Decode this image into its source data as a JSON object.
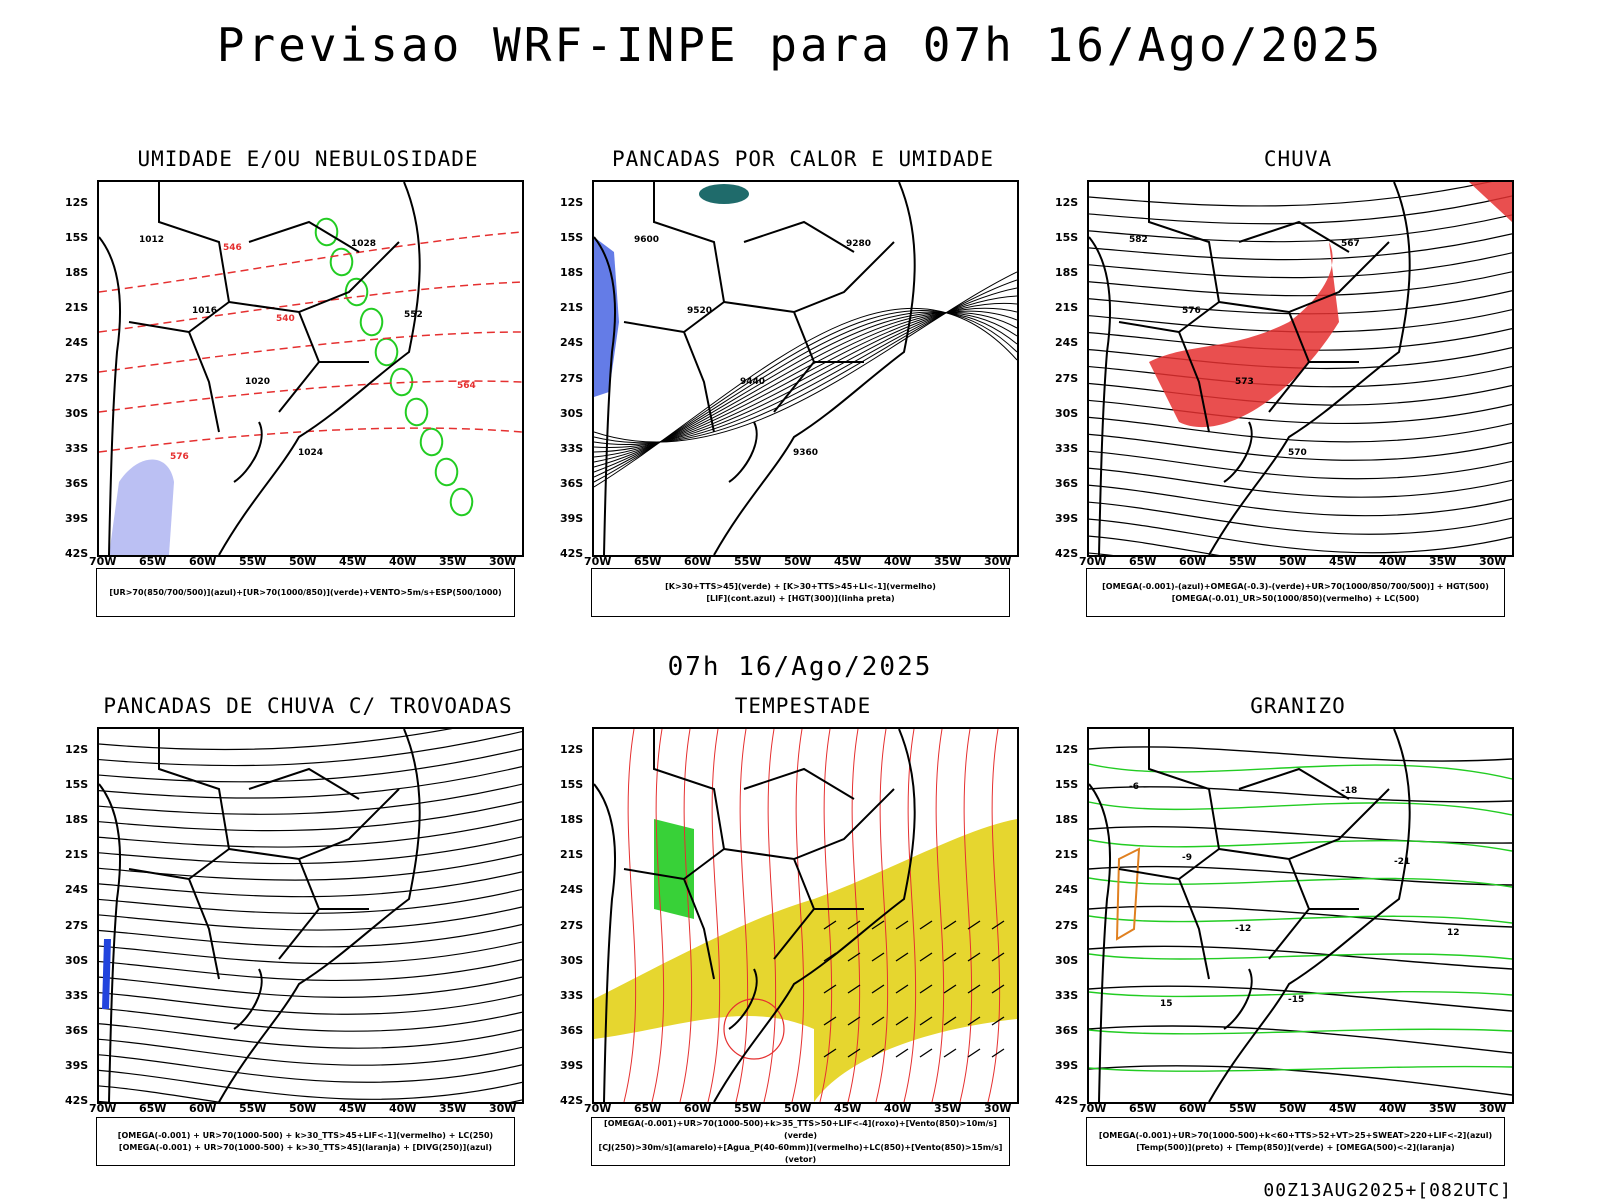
{
  "title": "Previsao WRF-INPE  para 07h 16/Ago/2025",
  "mid_time": "07h 16/Ago/2025",
  "run_info": "00Z13AUG2025+[082UTC]",
  "chart_data": {
    "type": "map-grid",
    "lat_ticks": [
      "12S",
      "15S",
      "18S",
      "21S",
      "24S",
      "27S",
      "30S",
      "33S",
      "36S",
      "39S",
      "42S"
    ],
    "lon_ticks": [
      "70W",
      "65W",
      "60W",
      "55W",
      "50W",
      "45W",
      "40W",
      "35W",
      "30W"
    ],
    "panels": [
      {
        "title": "UMIDADE E/OU NEBULOSIDADE",
        "legend": [
          "[UR>70(850/700/500)](azul)+[UR>70(1000/850)](verde)+VENTO>5m/s+ESP(500/1000)"
        ],
        "contour_labels": [
          "1012",
          "1016",
          "1020",
          "1024",
          "1028",
          "552",
          "564",
          "576",
          "546",
          "540"
        ]
      },
      {
        "title": "PANCADAS POR CALOR E UMIDADE",
        "legend": [
          "[K>30+TTS>45](verde) + [K>30+TTS>45+LI<-1](vermelho)",
          "[LIF](cont.azul) + [HGT(300)](linha preta)"
        ],
        "contour_labels": [
          "9600",
          "9520",
          "9440",
          "9360",
          "9280"
        ]
      },
      {
        "title": "CHUVA",
        "legend": [
          "[OMEGA(-0.001)-(azul)+OMEGA(-0.3)-(verde)+UR>70(1000/850/700/500)] + HGT(500)",
          "[OMEGA(-0.01)_UR>50(1000/850)(vermelho) + LC(500)"
        ],
        "contour_labels": [
          "582",
          "576",
          "573",
          "570",
          "567"
        ]
      },
      {
        "title": "PANCADAS DE CHUVA C/ TROVOADAS",
        "legend": [
          "[OMEGA(-0.001) + UR>70(1000-500) + k>30_TTS>45+LIF<-1](vermelho) + LC(250)",
          "[OMEGA(-0.001) + UR>70(1000-500) + k>30_TTS>45](laranja) + [DIVG(250)](azul)"
        ],
        "contour_labels": []
      },
      {
        "title": "TEMPESTADE",
        "legend": [
          "[OMEGA(-0.001)+UR>70(1000-500)+k>35_TTS>50+LIF<-4](roxo)+[Vento(850)>10m/s](verde)",
          "[CJ(250)>30m/s](amarelo)+[Agua_P(40-60mm)](vermelho)+LC(850)+[Vento(850)>15m/s](vetor)"
        ],
        "contour_labels": []
      },
      {
        "title": "GRANIZO",
        "legend": [
          "[OMEGA(-0.001)+UR>70(1000-500)+k<60+TTS>52+VT>25+SWEAT>220+LIF<-2](azul)",
          "[Temp(500)](preto) + [Temp(850)](verde) + [OMEGA(500)<-2](laranja)"
        ],
        "contour_labels": [
          "-6",
          "-9",
          "-12",
          "-15",
          "-18",
          "-21",
          "12",
          "15"
        ]
      }
    ]
  },
  "colors": {
    "red": "#e53030",
    "green": "#22cc22",
    "blue": "#2244dd",
    "yellow": "#e6d62f",
    "teal": "#1f6b6b",
    "lavender": "#aab0f0"
  }
}
